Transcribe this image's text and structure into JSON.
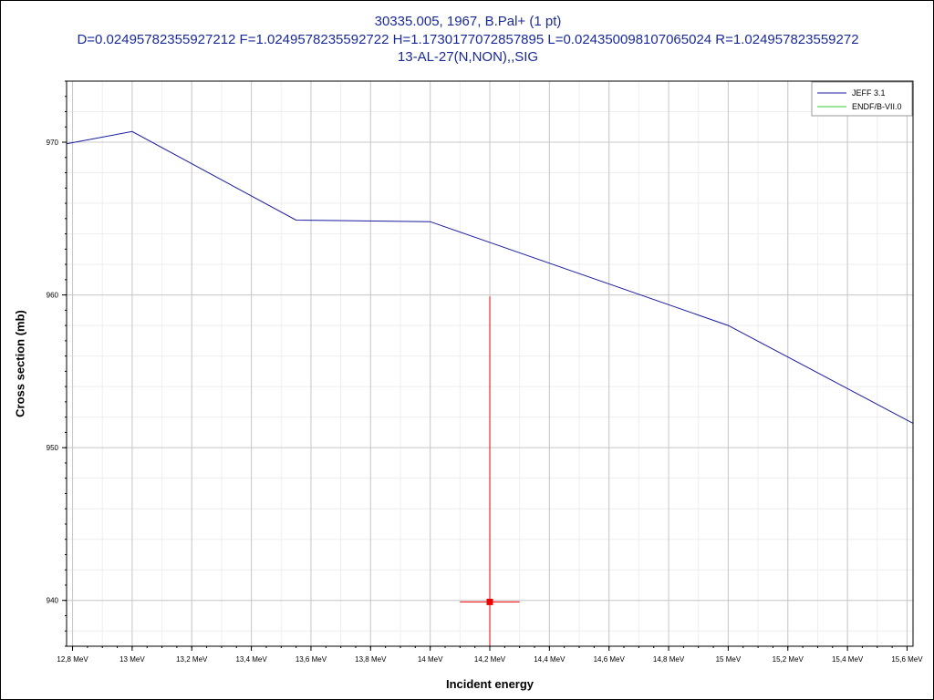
{
  "chart_data": {
    "type": "line",
    "title_lines": [
      "30335.005, 1967, B.Pal+ (1 pt)",
      "D=0.02495782355927212 F=1.0249578235592722 H=1.1730177072857895 L=0.024350098107065024 R=1.024957823559272",
      "13-AL-27(N,NON),,SIG"
    ],
    "xlabel": "Incident energy",
    "ylabel": "Cross section (mb)",
    "xlim": [
      12.78,
      15.62
    ],
    "ylim": [
      937,
      974
    ],
    "x_ticks": [
      {
        "value": 12.8,
        "label": "12,8 MeV"
      },
      {
        "value": 13.0,
        "label": "13 MeV"
      },
      {
        "value": 13.2,
        "label": "13,2 MeV"
      },
      {
        "value": 13.4,
        "label": "13,4 MeV"
      },
      {
        "value": 13.6,
        "label": "13,6 MeV"
      },
      {
        "value": 13.8,
        "label": "13,8 MeV"
      },
      {
        "value": 14.0,
        "label": "14 MeV"
      },
      {
        "value": 14.2,
        "label": "14,2 MeV"
      },
      {
        "value": 14.4,
        "label": "14,4 MeV"
      },
      {
        "value": 14.6,
        "label": "14,6 MeV"
      },
      {
        "value": 14.8,
        "label": "14,8 MeV"
      },
      {
        "value": 15.0,
        "label": "15 MeV"
      },
      {
        "value": 15.2,
        "label": "15,2 MeV"
      },
      {
        "value": 15.4,
        "label": "15,4 MeV"
      },
      {
        "value": 15.6,
        "label": "15,6 MeV"
      }
    ],
    "y_ticks": [
      {
        "value": 940,
        "label": "940"
      },
      {
        "value": 950,
        "label": "950"
      },
      {
        "value": 960,
        "label": "960"
      },
      {
        "value": 970,
        "label": "970"
      }
    ],
    "grid": true,
    "legend_position": "top-right",
    "series": [
      {
        "name": "JEFF 3.1",
        "color": "#1a1aa0",
        "x": [
          12.78,
          13.0,
          13.55,
          14.0,
          15.0,
          15.62
        ],
        "y": [
          969.9,
          970.7,
          964.9,
          964.8,
          958.0,
          951.6
        ]
      },
      {
        "name": "ENDF/B-VII.0",
        "color": "#33cc33",
        "x": [],
        "y": []
      }
    ],
    "experimental_points": [
      {
        "x": 14.2,
        "y": 939.9,
        "x_err": 0.1,
        "y_err": 20.0,
        "color": "#ee0000"
      }
    ]
  }
}
